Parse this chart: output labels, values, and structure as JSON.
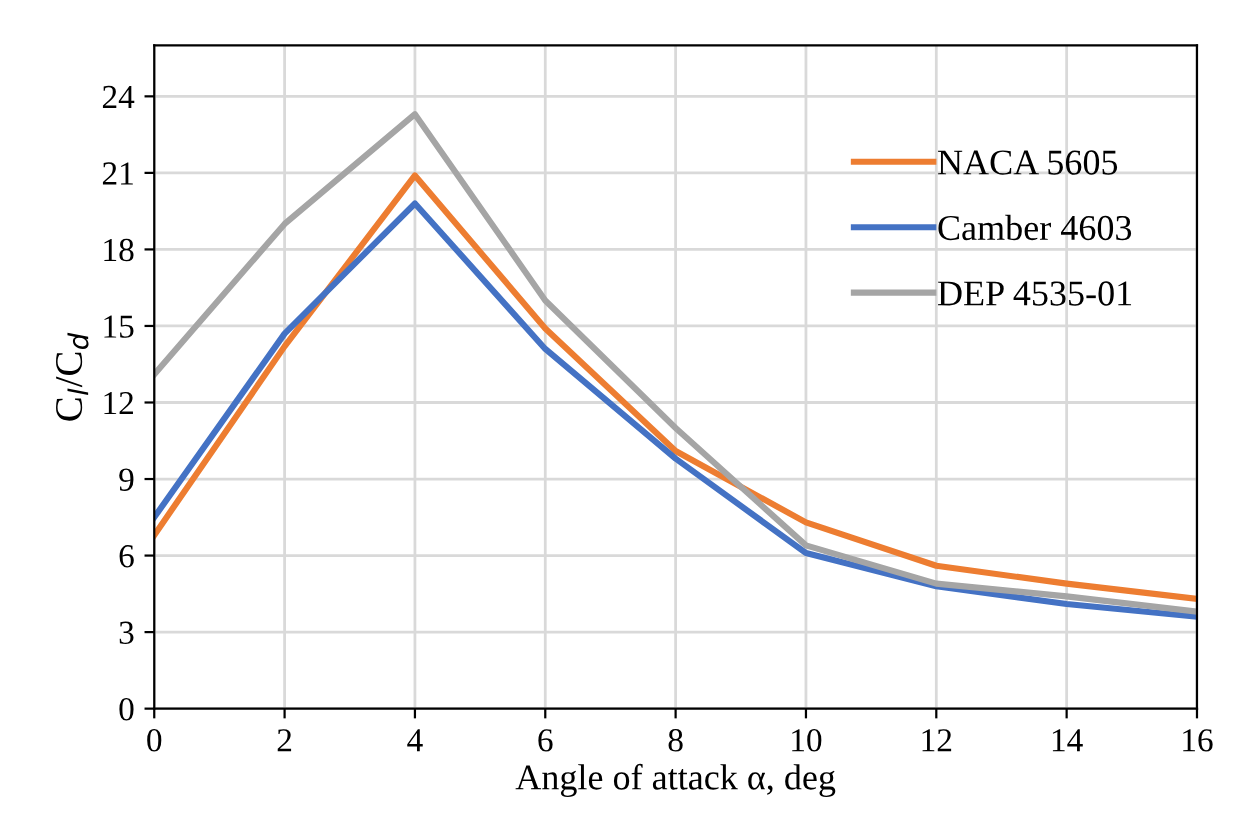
{
  "chart_data": {
    "type": "line",
    "xlabel": "Angle of attack α, deg",
    "ylabel": "C$_{l}$/C$_{d}$",
    "x": [
      0,
      2,
      4,
      6,
      8,
      10,
      12,
      14,
      16
    ],
    "series": [
      {
        "name": "NACA 5605",
        "color": "#ed7d31",
        "values": [
          6.8,
          14.2,
          20.9,
          14.9,
          10.1,
          7.3,
          5.6,
          4.9,
          4.3
        ]
      },
      {
        "name": "Camber 4603",
        "color": "#4472c4",
        "values": [
          7.5,
          14.7,
          19.8,
          14.1,
          9.8,
          6.1,
          4.8,
          4.1,
          3.6
        ]
      },
      {
        "name": "DEP 4535-01",
        "color": "#a5a5a5",
        "values": [
          13.1,
          19.0,
          23.3,
          16.0,
          11.0,
          6.4,
          4.9,
          4.4,
          3.8
        ]
      }
    ],
    "xlim": [
      0,
      16
    ],
    "xticks": [
      0,
      2,
      4,
      6,
      8,
      10,
      12,
      14,
      16
    ],
    "ylim": [
      0,
      26
    ],
    "yticks": [
      0,
      3,
      6,
      9,
      12,
      15,
      18,
      21,
      24
    ],
    "grid": true,
    "legend": "right",
    "marker": "none",
    "line_style": "solid"
  }
}
